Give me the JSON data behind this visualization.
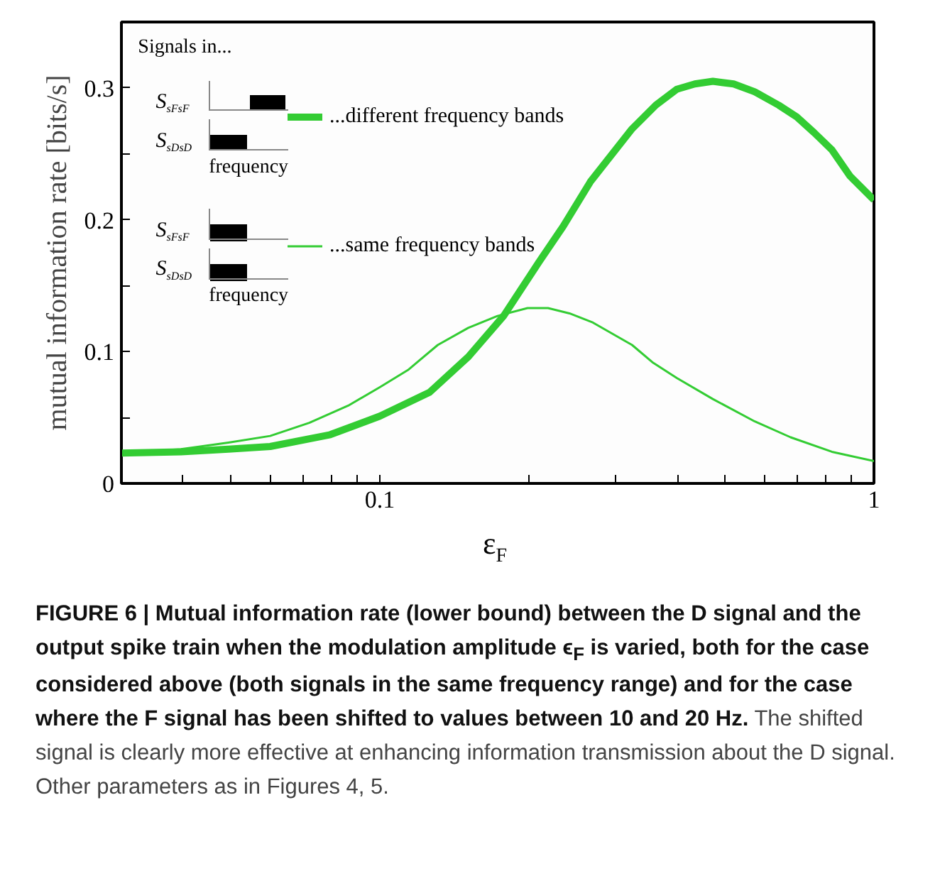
{
  "chart_data": {
    "type": "line",
    "xlabel": "ε$_{F}$",
    "ylabel": "mutual information rate [bits/s]",
    "legend_title": "Signals in...",
    "legend": "top left",
    "grid": false,
    "log": "x",
    "xlim": [
      0.03,
      1
    ],
    "ylim": [
      0,
      0.35
    ],
    "xticks": [
      {
        "value": 0.04,
        "label": null
      },
      {
        "value": 0.05,
        "label": null
      },
      {
        "value": 0.06,
        "label": null
      },
      {
        "value": 0.07,
        "label": null
      },
      {
        "value": 0.08,
        "label": null
      },
      {
        "value": 0.09,
        "label": null
      },
      0.1,
      {
        "value": 0.2,
        "label": null
      },
      {
        "value": 0.3,
        "label": null
      },
      {
        "value": 0.4,
        "label": null
      },
      {
        "value": 0.5,
        "label": null
      },
      {
        "value": 0.6,
        "label": null
      },
      {
        "value": 0.7,
        "label": null
      },
      {
        "value": 0.8,
        "label": null
      },
      {
        "value": 0.9,
        "label": null
      },
      1
    ],
    "yticks": [
      0,
      {
        "value": 0.05,
        "label": null
      },
      0.1,
      {
        "value": 0.15,
        "label": null
      },
      0.2,
      {
        "value": 0.25,
        "label": null
      },
      0.3
    ],
    "series": [
      {
        "name": "...different frequency bands",
        "color": "#33cc33",
        "x": [
          0.03,
          0.0396,
          0.0494,
          0.06,
          0.0794,
          0.1,
          0.126,
          0.151,
          0.178,
          0.21,
          0.235,
          0.267,
          0.324,
          0.362,
          0.399,
          0.434,
          0.472,
          0.52,
          0.574,
          0.641,
          0.698,
          0.757,
          0.822,
          0.895,
          1.0
        ],
        "values": [
          0.023,
          0.024,
          0.026,
          0.028,
          0.037,
          0.051,
          0.069,
          0.096,
          0.127,
          0.168,
          0.195,
          0.229,
          0.269,
          0.287,
          0.299,
          0.303,
          0.305,
          0.303,
          0.297,
          0.287,
          0.278,
          0.266,
          0.253,
          0.233,
          0.215
        ]
      },
      {
        "name": "...same frequency bands",
        "color": "#33cc33",
        "x": [
          0.03,
          0.0396,
          0.0494,
          0.06,
          0.072,
          0.0863,
          0.1,
          0.114,
          0.131,
          0.151,
          0.173,
          0.199,
          0.219,
          0.242,
          0.27,
          0.324,
          0.356,
          0.399,
          0.472,
          0.574,
          0.678,
          0.822,
          1.0
        ],
        "values": [
          0.023,
          0.026,
          0.031,
          0.036,
          0.046,
          0.059,
          0.073,
          0.086,
          0.105,
          0.118,
          0.127,
          0.133,
          0.133,
          0.129,
          0.122,
          0.105,
          0.092,
          0.08,
          0.064,
          0.047,
          0.035,
          0.024,
          0.017
        ]
      }
    ],
    "annotations": [
      "S$_{sFsF}$",
      "S$_{sDsD}$",
      "frequency",
      "S$_{sFsF}$",
      "S$_{sDsD}$",
      "frequency",
      "FIGURE 6 | Mutual information rate (lower bound) between the D signal and the output spike train when the modulation amplitude ϵ$_{F}$ is varied, both for the case considered above (both signals in the same frequency range) and for the case where the F signal has been shifted to values between 10 and 20 Hz.",
      "The shifted signal is clearly more effective at enhancing information transmission about the D signal. Other parameters as in Figures 4, 5."
    ]
  }
}
